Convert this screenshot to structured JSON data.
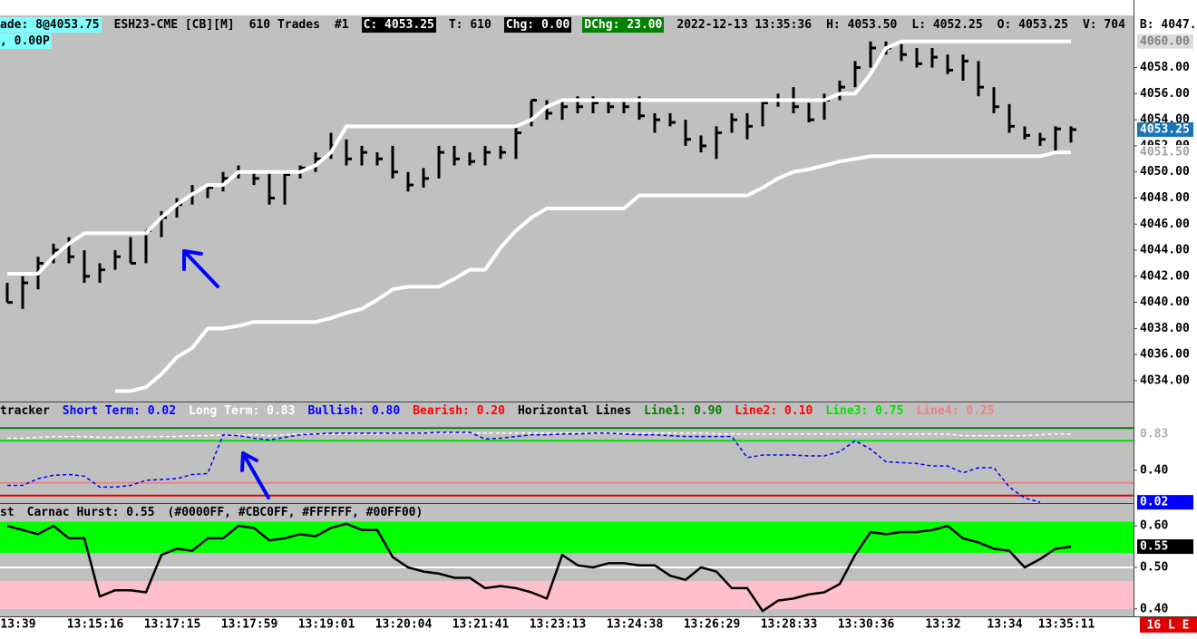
{
  "header": {
    "lines": [
      [
        {
          "text": "ade: 8@4053.75",
          "bg": "#80ffff",
          "fg": "#000000"
        },
        {
          "text": "ESH23-CME [CB][M]",
          "fg": "#000000"
        },
        {
          "text": "610 Trades",
          "fg": "#000000"
        },
        {
          "text": "#1",
          "fg": "#000000"
        },
        {
          "text": "C: 4053.25",
          "bg": "#000000",
          "fg": "#ffffff"
        },
        {
          "text": "T: 610",
          "fg": "#000000"
        },
        {
          "text": "Chg: 0.00",
          "bg": "#000000",
          "fg": "#ffffff"
        },
        {
          "text": "DChg: 23.00",
          "bg": "#008000",
          "fg": "#ffffff"
        },
        {
          "text": "2022-12-13 13:35:36",
          "fg": "#000000"
        },
        {
          "text": "H: 4053.50",
          "fg": "#000000"
        },
        {
          "text": "L: 4052.25",
          "fg": "#000000"
        },
        {
          "text": "O: 4053.25",
          "fg": "#000000"
        },
        {
          "text": "V: 704",
          "fg": "#000000"
        },
        {
          "text": "B: 4047.",
          "fg": "#000000"
        }
      ],
      [
        {
          "text": ", 0.00P",
          "bg": "#80ffff",
          "fg": "#000000"
        }
      ]
    ]
  },
  "chart_data": [
    {
      "type": "ohlc",
      "categories": [
        "13:39",
        null,
        null,
        null,
        null,
        "13:15:16",
        null,
        null,
        null,
        null,
        "13:17:15",
        null,
        null,
        null,
        null,
        "13:17:59",
        null,
        null,
        null,
        null,
        "13:19:01",
        null,
        null,
        null,
        null,
        "13:20:04",
        null,
        null,
        null,
        null,
        "13:21:41",
        null,
        null,
        null,
        null,
        "13:23:13",
        null,
        null,
        null,
        null,
        "13:24:38",
        null,
        null,
        null,
        null,
        "13:26:29",
        null,
        null,
        null,
        null,
        "13:28:33",
        null,
        null,
        null,
        null,
        "13:30:36",
        null,
        null,
        null,
        null,
        "13:32",
        null,
        null,
        null,
        "13:34",
        null,
        null,
        null,
        "13:35:11",
        null
      ],
      "high": [
        4041.5,
        4042,
        4043.5,
        4044.5,
        4045,
        4044,
        4043,
        4044,
        4045,
        4045.5,
        4047,
        4048,
        4049,
        4049,
        4050,
        4050.5,
        4050,
        4050,
        4050,
        4050.5,
        4051.5,
        4053,
        4052.5,
        4052,
        4051.5,
        4052,
        4050,
        4050.3,
        4052,
        4052,
        4051.5,
        4052,
        4052,
        4053.5,
        4055.5,
        4055.5,
        4055.5,
        4055.8,
        4055.8,
        4055.5,
        4055.5,
        4055.8,
        4054.5,
        4054.5,
        4054,
        4052.8,
        4053.5,
        4054.5,
        4054.5,
        4055.5,
        4056,
        4056.5,
        4055.3,
        4056,
        4057,
        4058.5,
        4060,
        4060,
        4059.8,
        4059.5,
        4059.5,
        4059,
        4059,
        4058.5,
        4056.5,
        4055.2,
        4053.5,
        4053,
        4053.5,
        4053.5
      ],
      "low": [
        4040,
        4039.5,
        4041,
        4043,
        4043,
        4041.5,
        4041.5,
        4042.5,
        4043,
        4043,
        4045,
        4046.5,
        4047.5,
        4048,
        4048.5,
        4049.5,
        4049,
        4047.5,
        4047.5,
        4049.5,
        4050,
        4051,
        4050.5,
        4050.5,
        4050.5,
        4049.5,
        4048.5,
        4048.8,
        4049.5,
        4050.5,
        4050.5,
        4050.5,
        4051,
        4051,
        4053.5,
        4054,
        4054,
        4054.5,
        4054.5,
        4054.5,
        4054.5,
        4054,
        4053,
        4053.5,
        4052,
        4051.5,
        4051,
        4053,
        4052.5,
        4053.5,
        4055,
        4054.5,
        4053.8,
        4054,
        4055.5,
        4056.5,
        4058,
        4059,
        4058.5,
        4058,
        4058,
        4057.5,
        4057,
        4055.8,
        4054.5,
        4053,
        4052.5,
        4052,
        4051.5,
        4052.25
      ],
      "close": [
        4040,
        4041.5,
        4043,
        4044,
        4043.5,
        4042,
        4042.5,
        4043.5,
        4043,
        4045.5,
        4046.5,
        4047.5,
        4048.5,
        4048.8,
        4049.5,
        4050,
        4049.5,
        4048,
        4049.8,
        4050.3,
        4051,
        4052,
        4051,
        4051.5,
        4051,
        4050,
        4049,
        4049.5,
        4051.5,
        4051,
        4050.8,
        4051.5,
        4051.5,
        4053,
        4055.5,
        4054.5,
        4055,
        4055,
        4055.3,
        4055,
        4055,
        4054.3,
        4054,
        4053.8,
        4052.5,
        4052,
        4053,
        4054,
        4053.5,
        4055.3,
        4055.5,
        4055,
        4054,
        4055.5,
        4056.5,
        4058,
        4059.5,
        4059.5,
        4059,
        4058.3,
        4058.8,
        4057.8,
        4058.5,
        4056.5,
        4055,
        4053.5,
        4052.8,
        4052.5,
        4053.3,
        4053.25
      ],
      "color": "#000000",
      "lines": [
        {
          "color": "#ffffff",
          "values": [
            4042.2,
            4042.2,
            4042.2,
            4043.5,
            4044.5,
            4045.3,
            4045.3,
            4045.3,
            4045.3,
            4045.3,
            4046.5,
            4047.5,
            4048.3,
            4049,
            4049,
            4050,
            4050,
            4050,
            4050,
            4050,
            4050.5,
            4051.5,
            4053.5,
            4053.5,
            4053.5,
            4053.5,
            4053.5,
            4053.5,
            4053.5,
            4053.5,
            4053.5,
            4053.5,
            4053.5,
            4053.5,
            4054,
            4055,
            4055.5,
            4055.5,
            4055.5,
            4055.5,
            4055.5,
            4055.5,
            4055.5,
            4055.5,
            4055.5,
            4055.5,
            4055.5,
            4055.5,
            4055.5,
            4055.5,
            4055.5,
            4055.5,
            4055.5,
            4055.5,
            4056,
            4056,
            4057.5,
            4059.5,
            4060,
            4060,
            4060,
            4060,
            4060,
            4060,
            4060,
            4060,
            4060,
            4060,
            4060,
            4060
          ]
        },
        {
          "color": "#ffffff",
          "values": [
            null,
            null,
            null,
            null,
            null,
            null,
            null,
            4033.2,
            4033.2,
            4033.5,
            4034.5,
            4035.8,
            4036.5,
            4038,
            4038,
            4038.2,
            4038.5,
            4038.5,
            4038.5,
            4038.5,
            4038.5,
            4038.8,
            4039.2,
            4039.5,
            4040.2,
            4041,
            4041.2,
            4041.2,
            4041.2,
            4041.8,
            4042.5,
            4042.5,
            4044.2,
            4045.5,
            4046.5,
            4047.2,
            4047.2,
            4047.2,
            4047.2,
            4047.2,
            4047.2,
            4048.2,
            4048.2,
            4048.2,
            4048.2,
            4048.2,
            4048.2,
            4048.2,
            4048.2,
            4048.8,
            4049.5,
            4050,
            4050.2,
            4050.5,
            4050.8,
            4051,
            4051.2,
            4051.2,
            4051.2,
            4051.2,
            4051.2,
            4051.2,
            4051.2,
            4051.2,
            4051.2,
            4051.2,
            4051.2,
            4051.2,
            4051.5,
            4051.5
          ]
        }
      ],
      "ylim": [
        4032.4,
        4062
      ],
      "yticks": [
        {
          "value": 4034,
          "label": "4034.00"
        },
        {
          "value": 4036,
          "label": "4036.00"
        },
        {
          "value": 4038,
          "label": "4038.00"
        },
        {
          "value": 4040,
          "label": "4040.00"
        },
        {
          "value": 4042,
          "label": "4042.00"
        },
        {
          "value": 4044,
          "label": "4044.00"
        },
        {
          "value": 4046,
          "label": "4046.00"
        },
        {
          "value": 4048,
          "label": "4048.00"
        },
        {
          "value": 4050,
          "label": "4050.00"
        },
        {
          "value": 4052,
          "label": "4052.00"
        },
        {
          "value": 4054,
          "label": "4054.00"
        },
        {
          "value": 4056,
          "label": "4056.00"
        },
        {
          "value": 4058,
          "label": "4058.00"
        }
      ],
      "markers": [
        {
          "value": 4060,
          "label": "4060.00",
          "bg": "#dcdcdc",
          "fg": "#808080"
        },
        {
          "value": 4053.25,
          "label": "4053.25",
          "bg": "#1a75b8",
          "fg": "#ffffff"
        },
        {
          "value": 4051.5,
          "label": "4051.50",
          "bg": "#ffffff",
          "fg": "#a0a0a0"
        }
      ]
    },
    {
      "type": "line",
      "legend": [
        {
          "text": "tracker",
          "color": "#000000"
        },
        {
          "text": "Short Term: 0.02",
          "color": "#0000ff"
        },
        {
          "text": "Long Term: 0.83",
          "color": "#ffffff"
        },
        {
          "text": "Bullish: 0.80",
          "color": "#0000ff"
        },
        {
          "text": "Bearish: 0.20",
          "color": "#ff0000"
        },
        {
          "text": "Horizontal Lines",
          "color": "#000000"
        },
        {
          "text": "Line1: 0.90",
          "color": "#008000"
        },
        {
          "text": "Line2: 0.10",
          "color": "#ff0000"
        },
        {
          "text": "Line3: 0.75",
          "color": "#00e000"
        },
        {
          "text": "Line4: 0.25",
          "color": "#f08080"
        }
      ],
      "hlines": [
        {
          "value": 0.9,
          "color": "#008000"
        },
        {
          "value": 0.75,
          "color": "#00e000"
        },
        {
          "value": 0.25,
          "color": "#f08080"
        },
        {
          "value": 0.1,
          "color": "#e00000"
        }
      ],
      "lines": [
        {
          "color": "#ffffff",
          "dash": true,
          "values": [
            0.78,
            0.78,
            0.79,
            0.8,
            0.8,
            0.8,
            0.79,
            0.79,
            0.79,
            0.8,
            0.8,
            0.8,
            0.81,
            0.81,
            0.82,
            0.82,
            0.82,
            0.81,
            0.82,
            0.83,
            0.83,
            0.83,
            0.83,
            0.83,
            0.83,
            0.84,
            0.84,
            0.84,
            0.84,
            0.84,
            0.84,
            0.84,
            0.84,
            0.84,
            0.84,
            0.84,
            0.84,
            0.84,
            0.84,
            0.84,
            0.84,
            0.84,
            0.84,
            0.84,
            0.84,
            0.84,
            0.83,
            0.83,
            0.83,
            0.83,
            0.83,
            0.83,
            0.83,
            0.83,
            0.83,
            0.83,
            0.83,
            0.83,
            0.83,
            0.83,
            0.83,
            0.83,
            0.81,
            0.81,
            0.81,
            0.81,
            0.81,
            0.82,
            0.83,
            0.83
          ]
        },
        {
          "color": "#0000ff",
          "dash": true,
          "values": [
            0.22,
            0.22,
            0.3,
            0.34,
            0.35,
            0.33,
            0.2,
            0.2,
            0.22,
            0.28,
            0.29,
            0.3,
            0.35,
            0.36,
            0.82,
            0.81,
            0.78,
            0.76,
            0.79,
            0.82,
            0.83,
            0.84,
            0.84,
            0.84,
            0.84,
            0.84,
            0.84,
            0.84,
            0.85,
            0.85,
            0.85,
            0.77,
            0.78,
            0.8,
            0.82,
            0.82,
            0.83,
            0.83,
            0.84,
            0.84,
            0.83,
            0.82,
            0.82,
            0.81,
            0.8,
            0.8,
            0.8,
            0.8,
            0.55,
            0.58,
            0.58,
            0.58,
            0.57,
            0.57,
            0.62,
            0.75,
            0.65,
            0.5,
            0.49,
            0.48,
            0.45,
            0.45,
            0.37,
            0.43,
            0.43,
            0.2,
            0.07,
            0.02,
            null,
            null
          ]
        }
      ],
      "ylim": [
        0,
        1
      ],
      "yticks": [
        {
          "value": 0.4,
          "label": "0.40"
        }
      ],
      "markers": [
        {
          "value": 0.83,
          "label": "0.83",
          "bg": "#ffffff",
          "fg": "#b0b0b0"
        },
        {
          "value": 0.02,
          "label": "0.02",
          "bg": "#0000ff",
          "fg": "#ffffff"
        }
      ]
    },
    {
      "type": "line",
      "legend": [
        {
          "text": "st",
          "color": "#000000"
        },
        {
          "text": "Carnac Hurst: 0.55",
          "color": "#000000"
        },
        {
          "text": "(#0000FF, #CBC0FF, #FFFFFF, #00FF00)",
          "color": "#000000"
        }
      ],
      "bands": [
        {
          "from": 0.535,
          "to": 0.61,
          "color": "#00ff00"
        },
        {
          "from": 0.4,
          "to": 0.467,
          "color": "#ffc0cb"
        }
      ],
      "hlines": [
        {
          "value": 0.5,
          "color": "#ffffff"
        }
      ],
      "lines": [
        {
          "color": "#000000",
          "width": 2.5,
          "values": [
            0.6,
            0.59,
            0.58,
            0.6,
            0.57,
            0.57,
            0.43,
            0.445,
            0.445,
            0.44,
            0.53,
            0.545,
            0.54,
            0.57,
            0.57,
            0.6,
            0.595,
            0.565,
            0.57,
            0.58,
            0.575,
            0.595,
            0.605,
            0.59,
            0.59,
            0.525,
            0.5,
            0.49,
            0.485,
            0.475,
            0.475,
            0.45,
            0.455,
            0.45,
            0.44,
            0.425,
            0.53,
            0.505,
            0.5,
            0.51,
            0.51,
            0.505,
            0.505,
            0.48,
            0.47,
            0.5,
            0.49,
            0.45,
            0.45,
            0.395,
            0.42,
            0.425,
            0.435,
            0.44,
            0.46,
            0.53,
            0.585,
            0.58,
            0.585,
            0.585,
            0.59,
            0.6,
            0.57,
            0.56,
            0.545,
            0.54,
            0.5,
            0.52,
            0.545,
            0.55
          ]
        }
      ],
      "ylim": [
        0.38,
        0.62
      ],
      "yticks": [
        {
          "value": 0.6,
          "label": "0.60"
        },
        {
          "value": 0.5,
          "label": "0.50"
        },
        {
          "value": 0.4,
          "label": "0.40"
        }
      ],
      "markers": [
        {
          "value": 0.55,
          "label": "0.55",
          "bg": "#000000",
          "fg": "#ffffff"
        }
      ]
    }
  ],
  "status": {
    "text": "16 L E",
    "bg": "#e00000",
    "fg": "#ffffff"
  }
}
